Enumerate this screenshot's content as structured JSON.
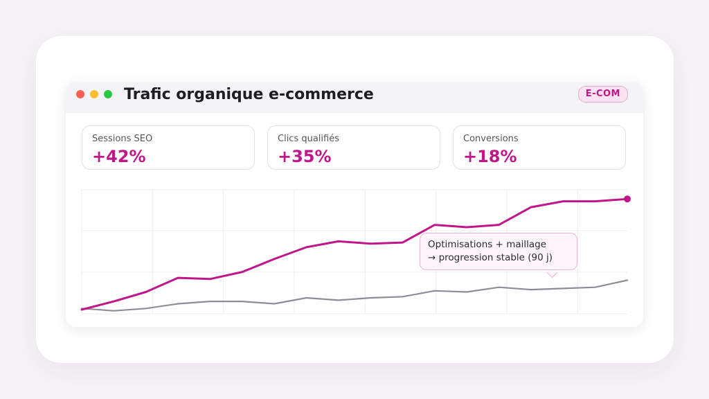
{
  "window": {
    "title": "Trafic organique e-commerce",
    "badge": "E-COM"
  },
  "kpis": [
    {
      "label": "Sessions SEO",
      "value": "+42%"
    },
    {
      "label": "Clics qualifiés",
      "value": "+35%"
    },
    {
      "label": "Conversions",
      "value": "+18%"
    }
  ],
  "tooltip": {
    "line1": "Optimisations + maillage",
    "line2": "→ progression stable (90 j)"
  },
  "colors": {
    "accent": "#c0168a",
    "secondary": "#8e8c96",
    "grid": "#ececef"
  },
  "chart_data": {
    "type": "line",
    "x": [
      1,
      2,
      3,
      4,
      5,
      6,
      7,
      8,
      9,
      10,
      11,
      12,
      13,
      14,
      15,
      16,
      17,
      18
    ],
    "ylim": [
      0,
      100
    ],
    "grid": true,
    "series": [
      {
        "values": [
          0,
          7,
          15,
          27,
          26,
          32,
          43,
          53,
          58,
          56,
          57,
          72,
          70,
          72,
          87,
          92,
          92,
          94
        ]
      },
      {
        "values": [
          1,
          -1,
          1,
          5,
          7,
          7,
          5,
          10,
          8,
          10,
          11,
          16,
          15,
          19,
          17,
          18,
          19,
          25
        ]
      }
    ],
    "marker": "end-of-first-series"
  }
}
